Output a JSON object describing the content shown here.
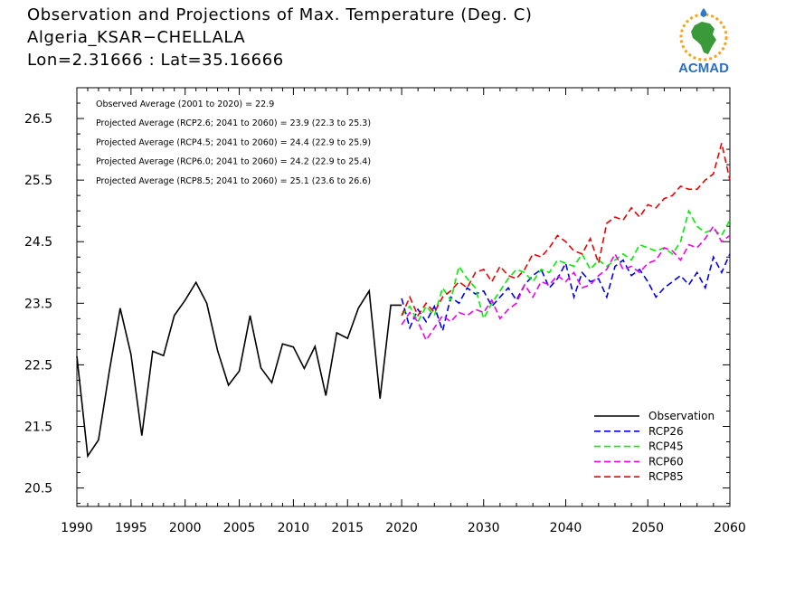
{
  "header": {
    "title_line1": "Observation and Projections of Max. Temperature (Deg. C)",
    "title_line2": "Algeria_KSAR−CHELLALA",
    "title_line3": "Lon=2.31666 : Lat=35.16666"
  },
  "logo": {
    "text": "ACMAD",
    "icon": "africa-continent-logo"
  },
  "chart_data": {
    "type": "line",
    "title": "Observation and Projections of Max. Temperature (Deg. C)",
    "xlabel": "",
    "ylabel": "",
    "xlim": [
      1990,
      2060
    ],
    "ylim": [
      20.2,
      27.0
    ],
    "x_ticks": [
      1990,
      1995,
      2000,
      2005,
      2010,
      2015,
      2020,
      2030,
      2040,
      2050,
      2060
    ],
    "y_ticks": [
      20.5,
      21.5,
      22.5,
      23.5,
      24.5,
      25.5,
      26.5
    ],
    "grid": false,
    "legend_position": "bottom-right",
    "annotations": [
      "Observed Average (2001 to 2020) = 22.9",
      "Projected Average (RCP2.6; 2041 to 2060) =  23.9 (22.3 to 25.3)",
      "Projected Average (RCP4.5; 2041 to 2060) =  24.4 (22.9 to 25.9)",
      "Projected Average (RCP6.0; 2041 to 2060) =  24.2 (22.9 to 25.4)",
      "Projected Average (RCP8.5; 2041 to 2060) =  25.1 (23.6 to 26.6)"
    ],
    "series": [
      {
        "name": "Observation",
        "color": "#000000",
        "dash": "solid",
        "x": [
          1990,
          1991,
          1992,
          1993,
          1994,
          1995,
          1996,
          1997,
          1998,
          1999,
          2000,
          2001,
          2002,
          2003,
          2004,
          2005,
          2006,
          2007,
          2008,
          2009,
          2010,
          2011,
          2012,
          2013,
          2014,
          2015,
          2016,
          2017,
          2018,
          2019,
          2020
        ],
        "y": [
          22.64,
          21.02,
          21.28,
          22.4,
          23.42,
          22.67,
          21.35,
          22.72,
          22.65,
          23.3,
          23.55,
          23.84,
          23.5,
          22.73,
          22.17,
          22.4,
          23.3,
          22.45,
          22.21,
          22.84,
          22.79,
          22.44,
          22.8,
          22.0,
          23.02,
          22.93,
          23.42,
          23.7,
          21.95,
          23.47,
          23.47
        ]
      },
      {
        "name": "RCP26",
        "color": "#0000ee",
        "dash": "dashed",
        "x": [
          2020,
          2021,
          2022,
          2023,
          2024,
          2025,
          2026,
          2027,
          2028,
          2029,
          2030,
          2031,
          2032,
          2033,
          2034,
          2035,
          2036,
          2037,
          2038,
          2039,
          2040,
          2041,
          2042,
          2043,
          2044,
          2045,
          2046,
          2047,
          2048,
          2049,
          2050,
          2051,
          2052,
          2053,
          2054,
          2055,
          2056,
          2057,
          2058,
          2059,
          2060
        ],
        "y": [
          23.58,
          23.1,
          23.4,
          23.2,
          23.45,
          23.05,
          23.6,
          23.5,
          23.75,
          23.65,
          23.7,
          23.45,
          23.6,
          23.75,
          23.55,
          23.8,
          23.95,
          24.05,
          23.75,
          23.9,
          24.15,
          23.6,
          24.0,
          23.85,
          23.9,
          23.6,
          24.1,
          24.2,
          23.95,
          24.05,
          23.85,
          23.6,
          23.75,
          23.85,
          23.95,
          23.8,
          24.0,
          23.75,
          24.25,
          24.0,
          24.3
        ]
      },
      {
        "name": "RCP45",
        "color": "#00ee00",
        "dash": "dashed",
        "x": [
          2020,
          2021,
          2022,
          2023,
          2024,
          2025,
          2026,
          2027,
          2028,
          2029,
          2030,
          2031,
          2032,
          2033,
          2034,
          2035,
          2036,
          2037,
          2038,
          2039,
          2040,
          2041,
          2042,
          2043,
          2044,
          2045,
          2046,
          2047,
          2048,
          2049,
          2050,
          2051,
          2052,
          2053,
          2054,
          2055,
          2056,
          2057,
          2058,
          2059,
          2060
        ],
        "y": [
          23.3,
          23.45,
          23.2,
          23.45,
          23.3,
          23.75,
          23.55,
          24.1,
          23.9,
          23.75,
          23.25,
          23.5,
          23.7,
          23.9,
          24.05,
          24.0,
          23.85,
          24.05,
          24.0,
          24.2,
          24.15,
          24.1,
          24.3,
          24.05,
          24.2,
          24.1,
          24.2,
          24.3,
          24.2,
          24.45,
          24.4,
          24.35,
          24.4,
          24.3,
          24.5,
          25.0,
          24.75,
          24.65,
          24.7,
          24.6,
          24.85
        ]
      },
      {
        "name": "RCP60",
        "color": "#ee00ee",
        "dash": "dashed",
        "x": [
          2020,
          2021,
          2022,
          2023,
          2024,
          2025,
          2026,
          2027,
          2028,
          2029,
          2030,
          2031,
          2032,
          2033,
          2034,
          2035,
          2036,
          2037,
          2038,
          2039,
          2040,
          2041,
          2042,
          2043,
          2044,
          2045,
          2046,
          2047,
          2048,
          2049,
          2050,
          2051,
          2052,
          2053,
          2054,
          2055,
          2056,
          2057,
          2058,
          2059,
          2060
        ],
        "y": [
          23.15,
          23.35,
          23.2,
          22.9,
          23.1,
          23.3,
          23.2,
          23.35,
          23.3,
          23.4,
          23.35,
          23.55,
          23.25,
          23.4,
          23.5,
          23.8,
          23.6,
          23.85,
          23.8,
          23.95,
          23.85,
          24.0,
          23.75,
          23.8,
          23.95,
          24.05,
          24.3,
          24.05,
          24.1,
          24.0,
          24.15,
          24.2,
          24.4,
          24.35,
          24.2,
          24.45,
          24.4,
          24.55,
          24.75,
          24.5,
          24.6
        ]
      },
      {
        "name": "RCP85",
        "color": "#ee0000",
        "dash": "dashed",
        "x": [
          2020,
          2021,
          2022,
          2023,
          2024,
          2025,
          2026,
          2027,
          2028,
          2029,
          2030,
          2031,
          2032,
          2033,
          2034,
          2035,
          2036,
          2037,
          2038,
          2039,
          2040,
          2041,
          2042,
          2043,
          2044,
          2045,
          2046,
          2047,
          2048,
          2049,
          2050,
          2051,
          2052,
          2053,
          2054,
          2055,
          2056,
          2057,
          2058,
          2059,
          2060
        ],
        "y": [
          23.3,
          23.6,
          23.3,
          23.5,
          23.35,
          23.6,
          23.7,
          23.85,
          23.75,
          24.0,
          24.05,
          23.85,
          24.1,
          23.95,
          23.9,
          24.05,
          24.3,
          24.25,
          24.4,
          24.6,
          24.5,
          24.35,
          24.3,
          24.55,
          24.15,
          24.8,
          24.9,
          24.85,
          25.05,
          24.9,
          25.1,
          25.05,
          25.2,
          25.25,
          25.4,
          25.35,
          25.35,
          25.5,
          25.6,
          26.1,
          25.5
        ]
      }
    ]
  }
}
